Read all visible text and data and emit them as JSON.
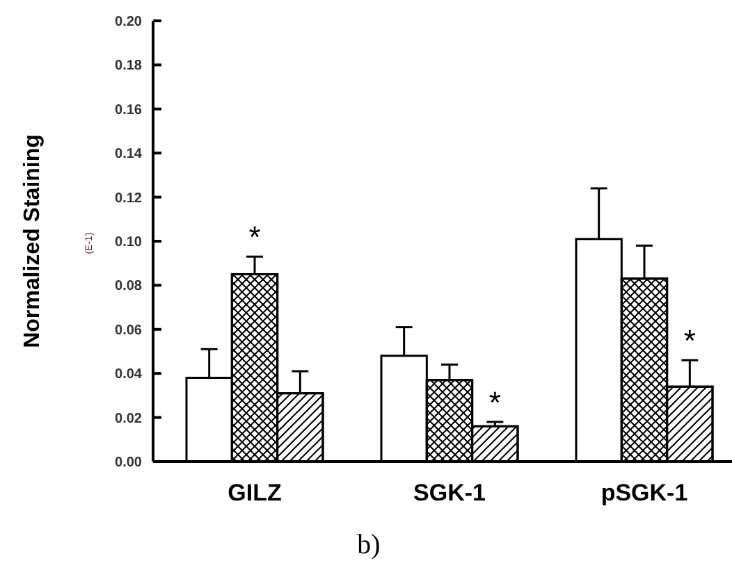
{
  "chart_data": {
    "type": "bar",
    "ylabel": "Normalized Staining",
    "categories": [
      "GILZ",
      "SGK-1",
      "pSGK-1"
    ],
    "series": [
      {
        "color": "#ffffff",
        "values": [
          0.038,
          0.048,
          0.101
        ],
        "errors": [
          0.013,
          0.013,
          0.023
        ]
      },
      {
        "color": "#ffffff",
        "values": [
          0.085,
          0.037,
          0.083
        ],
        "errors": [
          0.008,
          0.007,
          0.015
        ]
      },
      {
        "color": "#ffffff",
        "values": [
          0.031,
          0.016,
          0.034
        ],
        "errors": [
          0.01,
          0.002,
          0.012
        ]
      }
    ],
    "ylim": [
      0,
      0.2
    ],
    "yticks": [
      {
        "value": 0,
        "label": "0.00"
      },
      {
        "value": 0.02,
        "label": "0.02"
      },
      {
        "value": 0.04,
        "label": "0.04"
      },
      {
        "value": 0.06,
        "label": "0.06"
      },
      {
        "value": 0.08,
        "label": "0.08"
      },
      {
        "value": 0.1,
        "label": "0.10"
      },
      {
        "value": 0.12,
        "label": "0.12"
      },
      {
        "value": 0.14,
        "label": "0.14"
      },
      {
        "value": 0.16,
        "label": "0.16"
      },
      {
        "value": 0.18,
        "label": "0.18"
      },
      {
        "value": 0.2,
        "label": "0.20"
      }
    ],
    "annotations": [
      "(E-1)",
      "b)",
      "*",
      "*",
      "*"
    ],
    "grid": false
  }
}
